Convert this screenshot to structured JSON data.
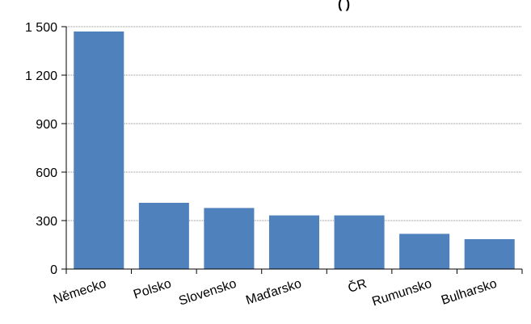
{
  "chart_data": {
    "type": "bar",
    "title_fragment": "(         )",
    "categories": [
      "Německo",
      "Polsko",
      "Slovensko",
      "Maďarsko",
      "ČR",
      "Rumunsko",
      "Bulharsko"
    ],
    "values": [
      1470,
      410,
      378,
      332,
      332,
      218,
      185
    ],
    "ylim": [
      0,
      1500
    ],
    "yticks": [
      0,
      300,
      600,
      900,
      1200,
      1500
    ],
    "ytick_labels": [
      "0",
      "300",
      "600",
      "900",
      "1 200",
      "1 500"
    ],
    "grid": true,
    "bar_color": "#4f81bd",
    "grid_color": "#8c8c8c",
    "legend": "none"
  }
}
